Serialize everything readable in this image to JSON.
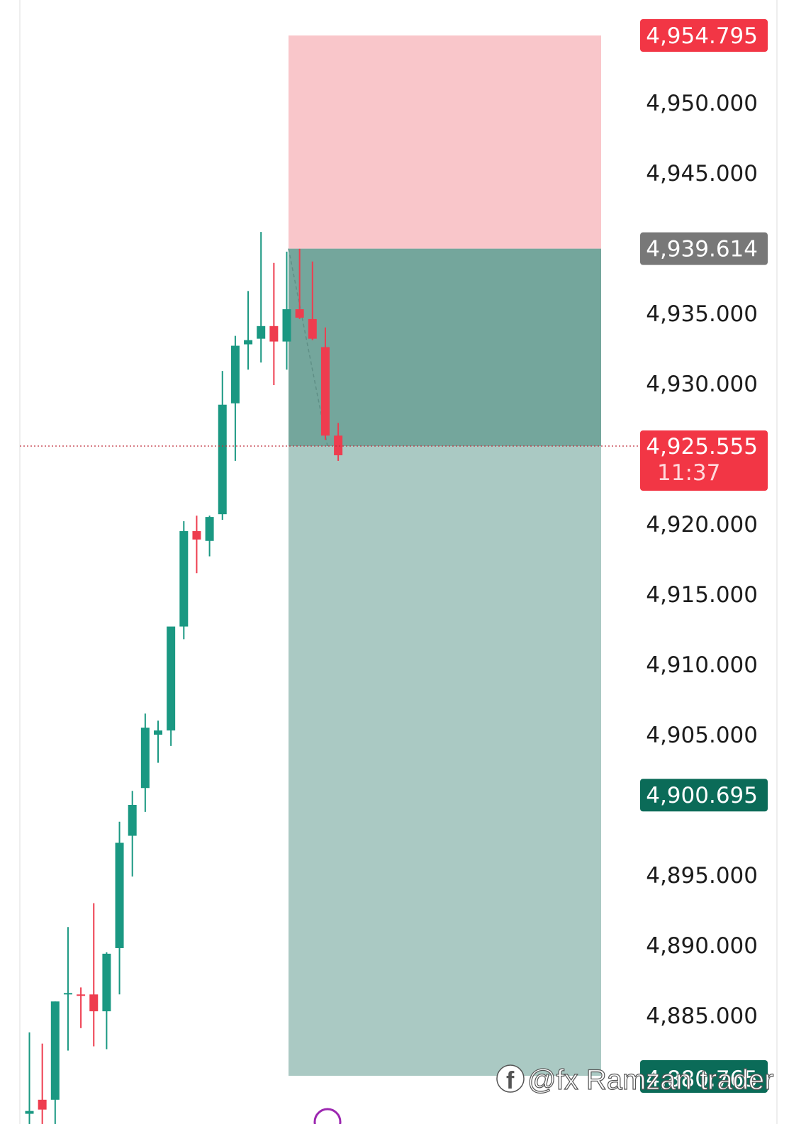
{
  "chart_data": {
    "type": "candlestick",
    "instrument_price_scale": {
      "ticks": [
        "4,950.000",
        "4,945.000",
        "4,935.000",
        "4,930.000",
        "4,920.000",
        "4,915.000",
        "4,910.000",
        "4,905.000",
        "4,895.000",
        "4,890.000",
        "4,885.000"
      ],
      "tick_values": [
        4950,
        4945,
        4935,
        4930,
        4920,
        4915,
        4910,
        4905,
        4895,
        4890,
        4885
      ],
      "range": [
        4879.5,
        4957.5
      ]
    },
    "position": {
      "kind": "short",
      "stop_loss": 4954.795,
      "stop_loss_label": "4,954.795",
      "entry": 4939.614,
      "entry_label": "4,939.614",
      "take_profit": 4900.695,
      "take_profit_label": "4,900.695",
      "lower_bound_label": "4,880.765",
      "colors": {
        "risk": "#f9c6ca",
        "reward": "#aac9c3",
        "active": "#74a69c"
      }
    },
    "current_price": {
      "value": 4925.555,
      "label": "4,925.555",
      "countdown": "11:37"
    },
    "candles": [
      {
        "o": 4878.0,
        "h": 4883.8,
        "l": 4875.0,
        "c": 4878.2
      },
      {
        "o": 4879.0,
        "h": 4883.0,
        "l": 4876.0,
        "c": 4878.3
      },
      {
        "o": 4879.0,
        "h": 4886.0,
        "l": 4877.0,
        "c": 4886.0
      },
      {
        "o": 4886.5,
        "h": 4891.3,
        "l": 4882.5,
        "c": 4886.6
      },
      {
        "o": 4886.5,
        "h": 4887.0,
        "l": 4884.1,
        "c": 4886.4
      },
      {
        "o": 4886.5,
        "h": 4893.0,
        "l": 4882.8,
        "c": 4885.3
      },
      {
        "o": 4885.3,
        "h": 4889.5,
        "l": 4882.6,
        "c": 4889.4
      },
      {
        "o": 4889.8,
        "h": 4898.8,
        "l": 4886.5,
        "c": 4897.3
      },
      {
        "o": 4897.8,
        "h": 4901.0,
        "l": 4894.9,
        "c": 4900.0
      },
      {
        "o": 4901.2,
        "h": 4906.5,
        "l": 4899.5,
        "c": 4905.5
      },
      {
        "o": 4905.0,
        "h": 4906.0,
        "l": 4903.0,
        "c": 4905.3
      },
      {
        "o": 4905.3,
        "h": 4912.5,
        "l": 4904.2,
        "c": 4912.7
      },
      {
        "o": 4912.7,
        "h": 4920.2,
        "l": 4911.8,
        "c": 4919.5
      },
      {
        "o": 4919.5,
        "h": 4920.6,
        "l": 4916.5,
        "c": 4918.9
      },
      {
        "o": 4918.8,
        "h": 4920.6,
        "l": 4917.7,
        "c": 4920.5
      },
      {
        "o": 4920.7,
        "h": 4930.9,
        "l": 4920.3,
        "c": 4928.5
      },
      {
        "o": 4928.6,
        "h": 4933.4,
        "l": 4924.5,
        "c": 4932.7
      },
      {
        "o": 4932.8,
        "h": 4936.6,
        "l": 4931.0,
        "c": 4933.1
      },
      {
        "o": 4933.2,
        "h": 4940.8,
        "l": 4931.5,
        "c": 4934.1
      },
      {
        "o": 4934.1,
        "h": 4938.6,
        "l": 4929.9,
        "c": 4933.0
      },
      {
        "o": 4933.0,
        "h": 4939.4,
        "l": 4931.0,
        "c": 4935.3
      },
      {
        "o": 4935.3,
        "h": 4939.6,
        "l": 4934.6,
        "c": 4934.7
      },
      {
        "o": 4934.6,
        "h": 4938.7,
        "l": 4933.1,
        "c": 4933.2
      },
      {
        "o": 4932.6,
        "h": 4934.0,
        "l": 4926.0,
        "c": 4926.3
      },
      {
        "o": 4926.3,
        "h": 4927.2,
        "l": 4924.5,
        "c": 4924.9
      }
    ],
    "colors": {
      "up": "#1a9882",
      "down": "#ee3d4f"
    }
  },
  "watermark": {
    "text": "@fx Ramzan trader",
    "icon": "facebook-icon"
  }
}
